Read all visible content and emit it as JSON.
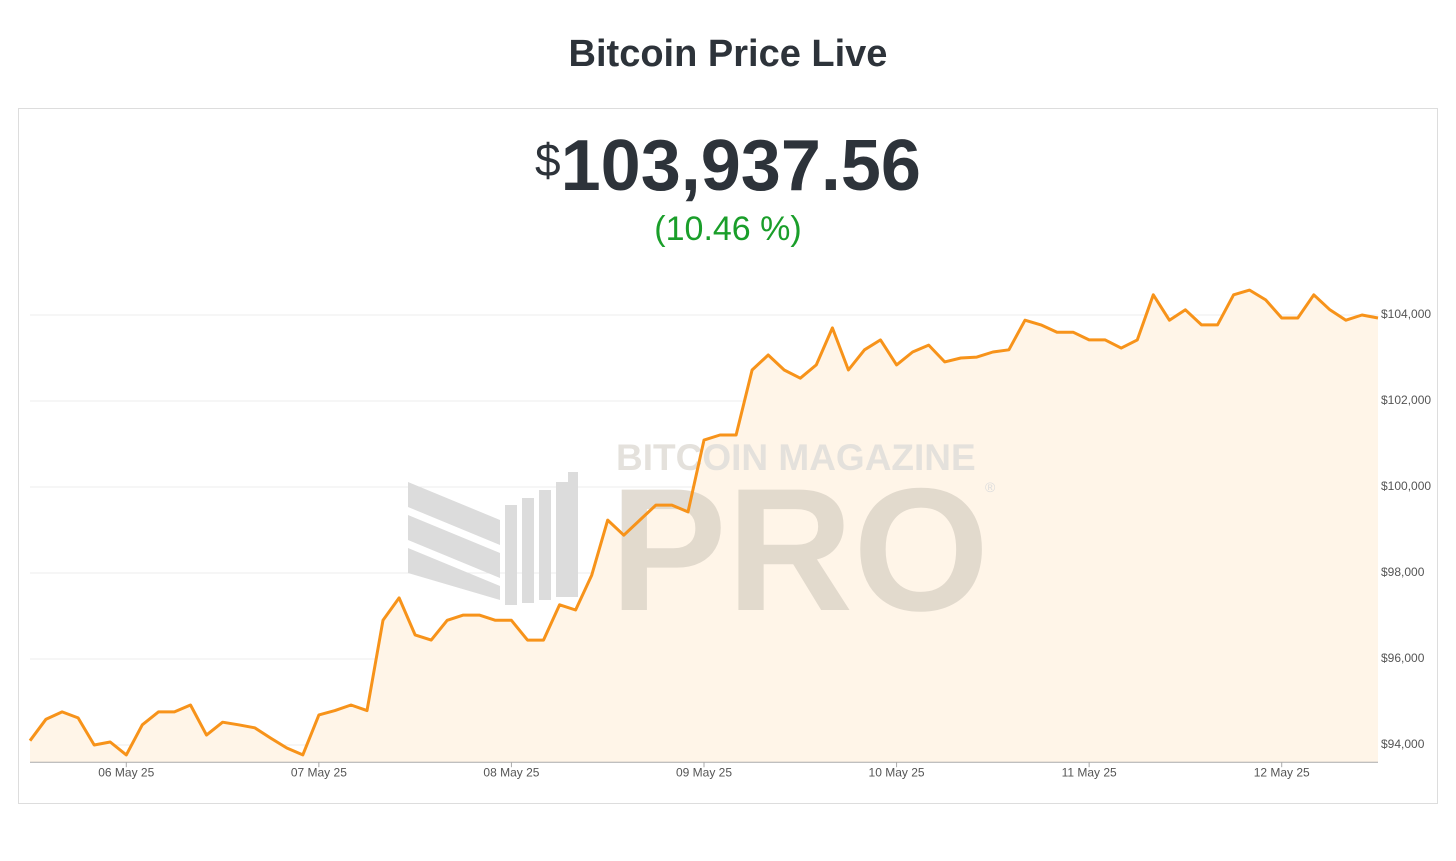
{
  "header": {
    "title": "Bitcoin Price Live"
  },
  "price": {
    "currency": "$",
    "amount": "103,937.56",
    "change": "(10.46 %)"
  },
  "watermark": {
    "top": "BITCOIN MAGAZINE",
    "main": "PRO",
    "mark": "®"
  },
  "chart_data": {
    "type": "line",
    "color": "#f7931a",
    "fill": "#fff5e8",
    "grid": true,
    "values": [
      94100,
      94600,
      94770,
      94630,
      94000,
      94070,
      93770,
      94470,
      94770,
      94770,
      94930,
      94230,
      94530,
      94470,
      94400,
      94160,
      93930,
      93770,
      94700,
      94800,
      94930,
      94800,
      96900,
      97420,
      96560,
      96440,
      96900,
      97020,
      97020,
      96900,
      96900,
      96440,
      96440,
      97260,
      97140,
      97950,
      99230,
      98880,
      99230,
      99580,
      99580,
      99420,
      101090,
      101210,
      101210,
      102720,
      103070,
      102720,
      102530,
      102840,
      103700,
      102720,
      103190,
      103420,
      102840,
      103140,
      103300,
      102910,
      103000,
      103020,
      103140,
      103190,
      103880,
      103770,
      103600,
      103600,
      103420,
      103420,
      103230,
      103420,
      104470,
      103880,
      104120,
      103770,
      103770,
      104470,
      104580,
      104350,
      103930,
      103930,
      104470,
      104120,
      103880,
      104000,
      103930
    ],
    "xlim": [
      0,
      84
    ],
    "xticks": [
      {
        "value": 6,
        "label": "06 May 25"
      },
      {
        "value": 18,
        "label": "07 May 25"
      },
      {
        "value": 30,
        "label": "08 May 25"
      },
      {
        "value": 42,
        "label": "09 May 25"
      },
      {
        "value": 54,
        "label": "10 May 25"
      },
      {
        "value": 66,
        "label": "11 May 25"
      },
      {
        "value": 78,
        "label": "12 May 25"
      }
    ],
    "ylim": [
      93600,
      105250
    ],
    "yticks": [
      {
        "value": 94000,
        "label": "$94,000"
      },
      {
        "value": 96000,
        "label": "$96,000"
      },
      {
        "value": 98000,
        "label": "$98,000"
      },
      {
        "value": 100000,
        "label": "$100,000"
      },
      {
        "value": 102000,
        "label": "$102,000"
      },
      {
        "value": 104000,
        "label": "$104,000"
      }
    ]
  }
}
